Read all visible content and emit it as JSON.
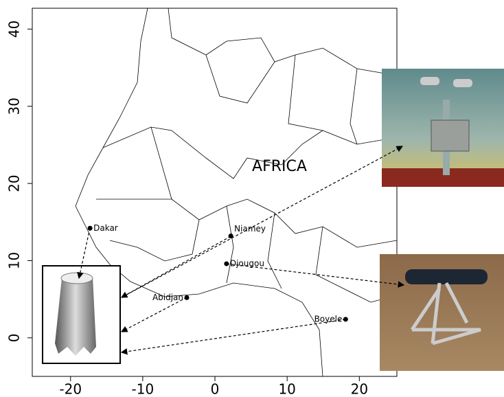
{
  "map": {
    "region_label": "AFRICA",
    "xlim": [
      -25.3,
      25.2
    ],
    "ylim": [
      -5,
      42.7
    ],
    "xticks": [
      -20,
      -10,
      0,
      10,
      20
    ],
    "yticks": [
      0,
      10,
      20,
      30,
      40
    ],
    "cities": [
      {
        "name": "Dakar",
        "lon": -17.3,
        "lat": 14.2
      },
      {
        "name": "Niamey",
        "lon": 2.2,
        "lat": 13.2
      },
      {
        "name": "Djougou",
        "lon": 1.6,
        "lat": 9.6
      },
      {
        "name": "Abidjan",
        "lon": -3.9,
        "lat": 5.2
      },
      {
        "name": "Boyele",
        "lon": 18.1,
        "lat": 2.4
      }
    ]
  }
}
